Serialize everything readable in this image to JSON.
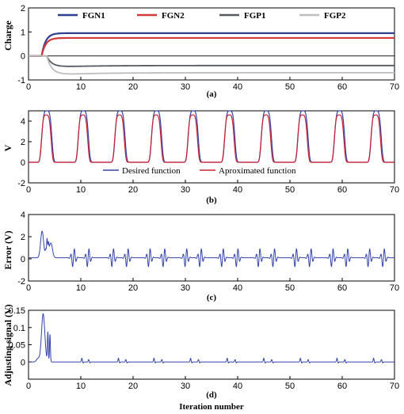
{
  "colors": {
    "fgn1": "#2e3f8f",
    "fgn2": "#d03a3a",
    "fgp1": "#555b5f",
    "fgp2": "#bdbdbd",
    "blue": "#3344aa",
    "red": "#cc2233"
  },
  "chart_data": [
    {
      "type": "line",
      "caption": "(a)",
      "ylabel": "Charge",
      "xlabel": "",
      "xlim": [
        0,
        70
      ],
      "ylim": [
        -1,
        2
      ],
      "xticks": [
        0,
        10,
        20,
        30,
        40,
        50,
        60,
        70
      ],
      "yticks": [
        -1,
        0,
        1,
        2
      ],
      "legend_position": "top-center",
      "series": [
        {
          "name": "FGN1",
          "start": 2.5,
          "final": 0.95
        },
        {
          "name": "FGN2",
          "start": 2.5,
          "final": 0.75
        },
        {
          "name": "FGP1",
          "start": 3.5,
          "final": -0.4
        },
        {
          "name": "FGP2",
          "start": 3.5,
          "final": -0.7
        }
      ]
    },
    {
      "type": "line",
      "caption": "(b)",
      "ylabel": "V",
      "xlabel": "",
      "xlim": [
        0,
        70
      ],
      "ylim": [
        -2,
        5
      ],
      "xticks": [
        0,
        10,
        20,
        30,
        40,
        50,
        60,
        70
      ],
      "yticks": [
        -2,
        0,
        2,
        4
      ],
      "legend_position": "bottom-center",
      "peaks": [
        3.5,
        10.5,
        17.5,
        24.5,
        31.5,
        38.5,
        45.5,
        52.5,
        59.5,
        66.5
      ],
      "series": [
        {
          "name": "Desired function",
          "peak_value": 5.0
        },
        {
          "name": "Aproximated function",
          "peak_value": 4.6
        }
      ]
    },
    {
      "type": "line",
      "caption": "(c)",
      "ylabel": "Error (V)",
      "xlabel": "",
      "xlim": [
        0,
        70
      ],
      "ylim": [
        -2,
        4
      ],
      "xticks": [
        0,
        10,
        20,
        30,
        40,
        50,
        60,
        70
      ],
      "yticks": [
        -2,
        0,
        2,
        4
      ],
      "initial_peak": 2.4,
      "oscillation_amplitude": 0.9
    },
    {
      "type": "line",
      "caption": "(d)",
      "ylabel": "Adjusting signal (V)",
      "xlabel": "Iteration number",
      "xlim": [
        0,
        70
      ],
      "ylim": [
        -0.05,
        0.15
      ],
      "xticks": [
        0,
        10,
        20,
        30,
        40,
        50,
        60,
        70
      ],
      "yticks": [
        0,
        0.05,
        0.1,
        0.15
      ],
      "peak_value": 0.14,
      "secondary_peak": 0.085
    }
  ]
}
